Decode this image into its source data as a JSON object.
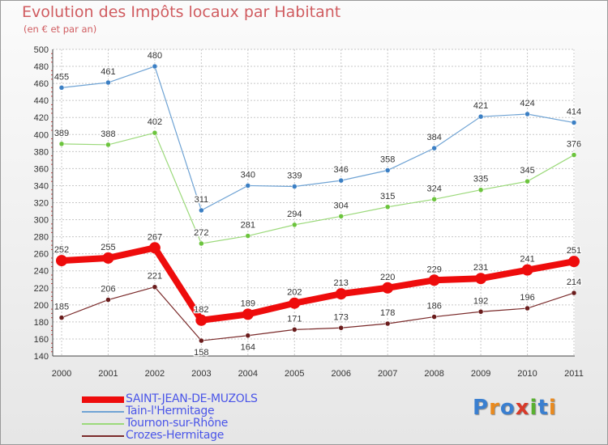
{
  "title": "Evolution des Impôts locaux par Habitant",
  "subtitle": "(en € et par an)",
  "logo": {
    "text": "Proxiti",
    "colors": [
      "#3a7fd0",
      "#e98a1e",
      "#3a7fd0",
      "#d83a2a",
      "#58b030",
      "#3a7fd0",
      "#e98a1e"
    ]
  },
  "chart_data": {
    "type": "line",
    "x": [
      "2000",
      "2001",
      "2002",
      "2003",
      "2004",
      "2005",
      "2006",
      "2007",
      "2008",
      "2009",
      "2010",
      "2011"
    ],
    "ylim": [
      140,
      500
    ],
    "yticks": [
      "140",
      "160",
      "180",
      "200",
      "220",
      "240",
      "260",
      "280",
      "300",
      "320",
      "340",
      "360",
      "380",
      "400",
      "420",
      "440",
      "460",
      "480",
      "500"
    ],
    "grid": true,
    "legend_position": "bottom-left",
    "series": [
      {
        "name": "SAINT-JEAN-DE-MUZOLS",
        "values": [
          252,
          255,
          267,
          182,
          189,
          202,
          213,
          220,
          229,
          231,
          241,
          251
        ],
        "labels": [
          "252",
          "255",
          "267",
          "182",
          "189",
          "202",
          "213",
          "220",
          "229",
          "231",
          "241",
          "251"
        ],
        "color": "#ee0c0c",
        "thick": true
      },
      {
        "name": "Tain-l'Hermitage",
        "values": [
          455,
          461,
          480,
          311,
          340,
          339,
          346,
          358,
          384,
          421,
          424,
          414
        ],
        "labels": [
          "455",
          "461",
          "480",
          "311",
          "340",
          "339",
          "346",
          "358",
          "384",
          "421",
          "424",
          "414"
        ],
        "color": "#6fa3d4",
        "marker": "#3b7fc4"
      },
      {
        "name": "Tournon-sur-Rhône",
        "values": [
          389,
          388,
          402,
          272,
          281,
          294,
          304,
          315,
          324,
          335,
          345,
          376
        ],
        "labels": [
          "389",
          "388",
          "402",
          "272",
          "281",
          "294",
          "304",
          "315",
          "324",
          "335",
          "345",
          "376"
        ],
        "color": "#9bd97a",
        "marker": "#6cc43d"
      },
      {
        "name": "Crozes-Hermitage",
        "values": [
          185,
          206,
          221,
          158,
          164,
          171,
          173,
          178,
          186,
          192,
          196,
          214
        ],
        "labels": [
          "185",
          "206",
          "221",
          "158",
          "164",
          "171",
          "173",
          "178",
          "186",
          "192",
          "196",
          "214"
        ],
        "color": "#7a2a2a",
        "marker": "#6a1c1c"
      }
    ]
  }
}
